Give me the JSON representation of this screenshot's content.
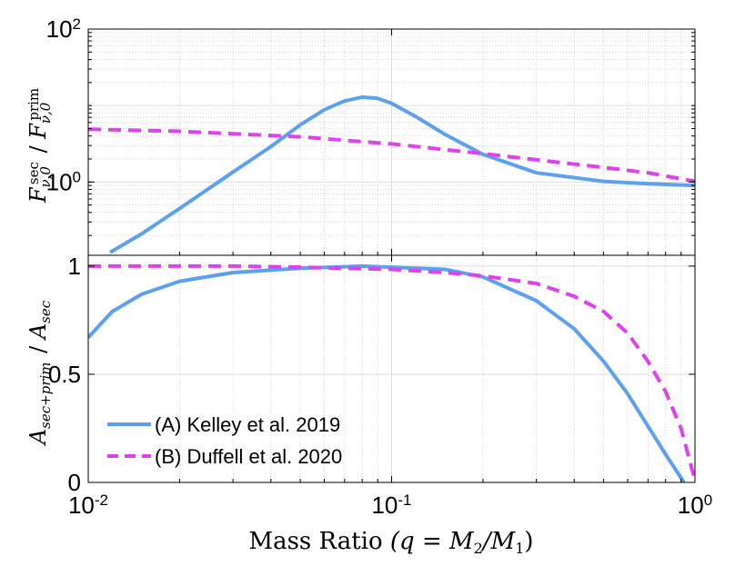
{
  "chart_data": [
    {
      "type": "line",
      "panel": "top",
      "xscale": "log",
      "yscale": "log",
      "xlim": [
        0.01,
        1
      ],
      "ylim": [
        0.11,
        100
      ],
      "ylabel": "F_{ν,0}^{sec} / F_{ν,0}^{prim}",
      "ylabel_base": "F",
      "ylabel_sub": "ν,0",
      "ylabel_sup": "sec",
      "ylabel_sub2": "ν,0",
      "ylabel_sup2": "prim",
      "ytick_base": "10",
      "yticks": [
        {
          "value": 100,
          "exp": "2"
        },
        {
          "value": 1,
          "exp": "0"
        }
      ],
      "grid": true,
      "series": [
        {
          "name": "(A) Kelley et al. 2019",
          "color": "#5ea0f0",
          "style": "solid",
          "x": [
            0.0118,
            0.015,
            0.02,
            0.03,
            0.04,
            0.05,
            0.06,
            0.07,
            0.08,
            0.09,
            0.1,
            0.12,
            0.15,
            0.2,
            0.3,
            0.5,
            0.7,
            1.0
          ],
          "y": [
            0.12,
            0.21,
            0.45,
            1.35,
            2.9,
            5.6,
            8.8,
            11.5,
            12.9,
            12.4,
            10.7,
            7.2,
            4.2,
            2.3,
            1.32,
            1.02,
            0.95,
            0.9
          ]
        },
        {
          "name": "(B) Duffell et al. 2020",
          "color": "#e040f0",
          "style": "dashed",
          "x": [
            0.01,
            0.02,
            0.05,
            0.1,
            0.2,
            0.3,
            0.5,
            0.7,
            1.0
          ],
          "y": [
            4.9,
            4.6,
            3.9,
            3.15,
            2.35,
            1.95,
            1.55,
            1.32,
            1.02
          ]
        }
      ]
    },
    {
      "type": "line",
      "panel": "bottom",
      "xscale": "log",
      "yscale": "linear",
      "xlim": [
        0.01,
        1
      ],
      "ylim": [
        0,
        1.05
      ],
      "ylabel": "A_{sec+prim} / A_{sec}",
      "ylabel_base": "A",
      "ylabel_sub": "sec+prim",
      "ylabel_sub2": "sec",
      "xlabel": "Mass Ratio (q = M_2/M_1)",
      "xlabel_prefix": "Mass Ratio",
      "xlabel_formula": "(q = M",
      "xlabel_sub1": "2",
      "xlabel_mid": "/M",
      "xlabel_sub2": "1",
      "xlabel_suffix": ")",
      "xtick_base": "10",
      "xticks": [
        {
          "value": 0.01,
          "exp": "-2"
        },
        {
          "value": 0.1,
          "exp": "-1"
        },
        {
          "value": 1,
          "exp": "0"
        }
      ],
      "yticks": [
        {
          "value": 0,
          "label": "0"
        },
        {
          "value": 0.5,
          "label": "0.5"
        },
        {
          "value": 1,
          "label": "1"
        }
      ],
      "grid": true,
      "legend": "bottom-left",
      "series": [
        {
          "name": "(A) Kelley et al. 2019",
          "color": "#5ea0f0",
          "style": "solid",
          "x": [
            0.01,
            0.012,
            0.015,
            0.02,
            0.03,
            0.05,
            0.08,
            0.1,
            0.15,
            0.2,
            0.3,
            0.4,
            0.5,
            0.6,
            0.7,
            0.8,
            0.92
          ],
          "y": [
            0.67,
            0.79,
            0.87,
            0.93,
            0.97,
            0.99,
            1.0,
            0.995,
            0.985,
            0.95,
            0.84,
            0.71,
            0.56,
            0.41,
            0.26,
            0.13,
            0.0
          ]
        },
        {
          "name": "(B) Duffell et al. 2020",
          "color": "#e040f0",
          "style": "dashed",
          "x": [
            0.01,
            0.03,
            0.05,
            0.1,
            0.15,
            0.2,
            0.3,
            0.4,
            0.5,
            0.6,
            0.7,
            0.8,
            0.9,
            1.0
          ],
          "y": [
            1.0,
            1.0,
            0.995,
            0.985,
            0.97,
            0.955,
            0.92,
            0.86,
            0.79,
            0.69,
            0.56,
            0.42,
            0.25,
            0.01
          ]
        }
      ]
    }
  ]
}
